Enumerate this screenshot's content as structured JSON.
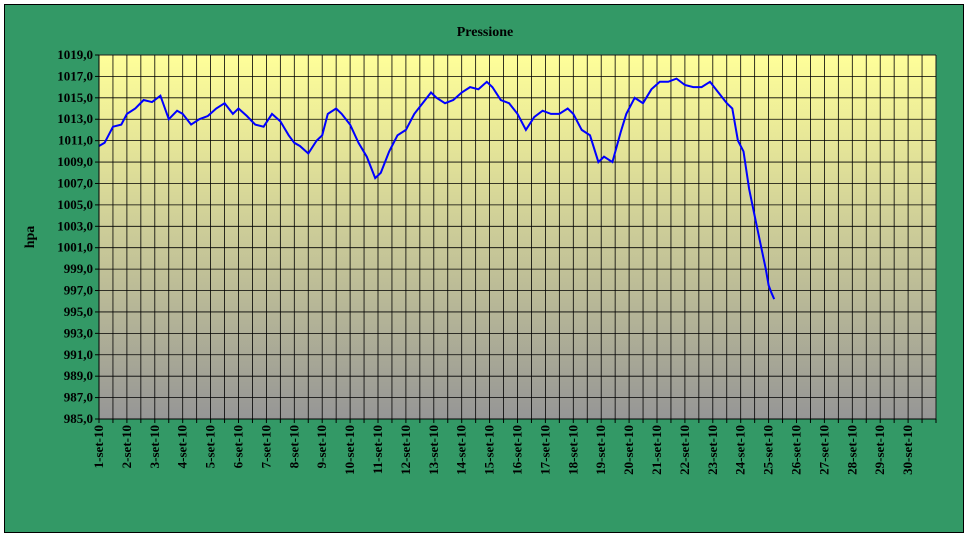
{
  "chart_data": {
    "type": "line",
    "title": "Pressione",
    "xlabel": "",
    "ylabel": "hpa",
    "ylim": [
      985.0,
      1019.0
    ],
    "y_ticks": [
      "1019,0",
      "1017,0",
      "1015,0",
      "1013,0",
      "1011,0",
      "1009,0",
      "1007,0",
      "1005,0",
      "1003,0",
      "1001,0",
      "999,0",
      "997,0",
      "995,0",
      "993,0",
      "991,0",
      "989,0",
      "987,0",
      "985,0"
    ],
    "x_tick_labels": [
      "1-set-10",
      "2-set-10",
      "3-set-10",
      "4-set-10",
      "5-set-10",
      "6-set-10",
      "7-set-10",
      "8-set-10",
      "9-set-10",
      "10-set-10",
      "11-set-10",
      "12-set-10",
      "13-set-10",
      "14-set-10",
      "15-set-10",
      "16-set-10",
      "17-set-10",
      "18-set-10",
      "19-set-10",
      "20-set-10",
      "21-set-10",
      "22-set-10",
      "23-set-10",
      "24-set-10",
      "25-set-10",
      "26-set-10",
      "27-set-10",
      "28-set-10",
      "29-set-10",
      "30-set-10"
    ],
    "grid": true,
    "legend": "none",
    "series": [
      {
        "color": "#0000ff",
        "x_days": [
          1.0,
          1.2,
          1.5,
          1.8,
          2.0,
          2.3,
          2.6,
          2.9,
          3.2,
          3.5,
          3.8,
          4.0,
          4.3,
          4.6,
          4.9,
          5.2,
          5.5,
          5.8,
          6.0,
          6.3,
          6.6,
          6.9,
          7.2,
          7.5,
          7.8,
          8.0,
          8.2,
          8.5,
          8.8,
          9.0,
          9.2,
          9.5,
          9.7,
          10.0,
          10.3,
          10.6,
          10.9,
          11.1,
          11.4,
          11.7,
          12.0,
          12.3,
          12.6,
          12.9,
          13.1,
          13.4,
          13.7,
          14.0,
          14.3,
          14.6,
          14.9,
          15.1,
          15.4,
          15.7,
          16.0,
          16.3,
          16.6,
          16.9,
          17.2,
          17.5,
          17.8,
          18.0,
          18.3,
          18.6,
          18.9,
          19.1,
          19.4,
          19.7,
          19.9,
          20.2,
          20.5,
          20.8,
          21.1,
          21.4,
          21.7,
          22.0,
          22.3,
          22.6,
          22.9,
          23.2,
          23.5,
          23.7,
          23.9,
          24.1,
          24.3,
          24.5,
          24.7,
          24.9,
          25.0,
          25.1,
          25.2
        ],
        "values": [
          1010.5,
          1010.8,
          1012.3,
          1012.5,
          1013.5,
          1014.0,
          1014.8,
          1014.6,
          1015.2,
          1013.0,
          1013.8,
          1013.5,
          1012.5,
          1013.0,
          1013.3,
          1014.0,
          1014.5,
          1013.5,
          1014.0,
          1013.3,
          1012.5,
          1012.3,
          1013.5,
          1012.8,
          1011.5,
          1010.8,
          1010.5,
          1009.8,
          1011.0,
          1011.5,
          1013.5,
          1014.0,
          1013.5,
          1012.5,
          1010.8,
          1009.5,
          1007.5,
          1008.0,
          1010.0,
          1011.5,
          1012.0,
          1013.5,
          1014.5,
          1015.5,
          1015.0,
          1014.5,
          1014.8,
          1015.5,
          1016.0,
          1015.8,
          1016.5,
          1016.0,
          1014.8,
          1014.5,
          1013.5,
          1012.0,
          1013.2,
          1013.8,
          1013.5,
          1013.5,
          1014.0,
          1013.5,
          1012.0,
          1011.5,
          1009.0,
          1009.5,
          1009.0,
          1011.8,
          1013.5,
          1015.0,
          1014.5,
          1015.8,
          1016.5,
          1016.5,
          1016.8,
          1016.2,
          1016.0,
          1016.0,
          1016.5,
          1015.5,
          1014.5,
          1014.0,
          1011.0,
          1010.0,
          1006.5,
          1004.0,
          1001.5,
          999.0,
          997.5,
          996.8,
          996.2
        ]
      }
    ]
  }
}
